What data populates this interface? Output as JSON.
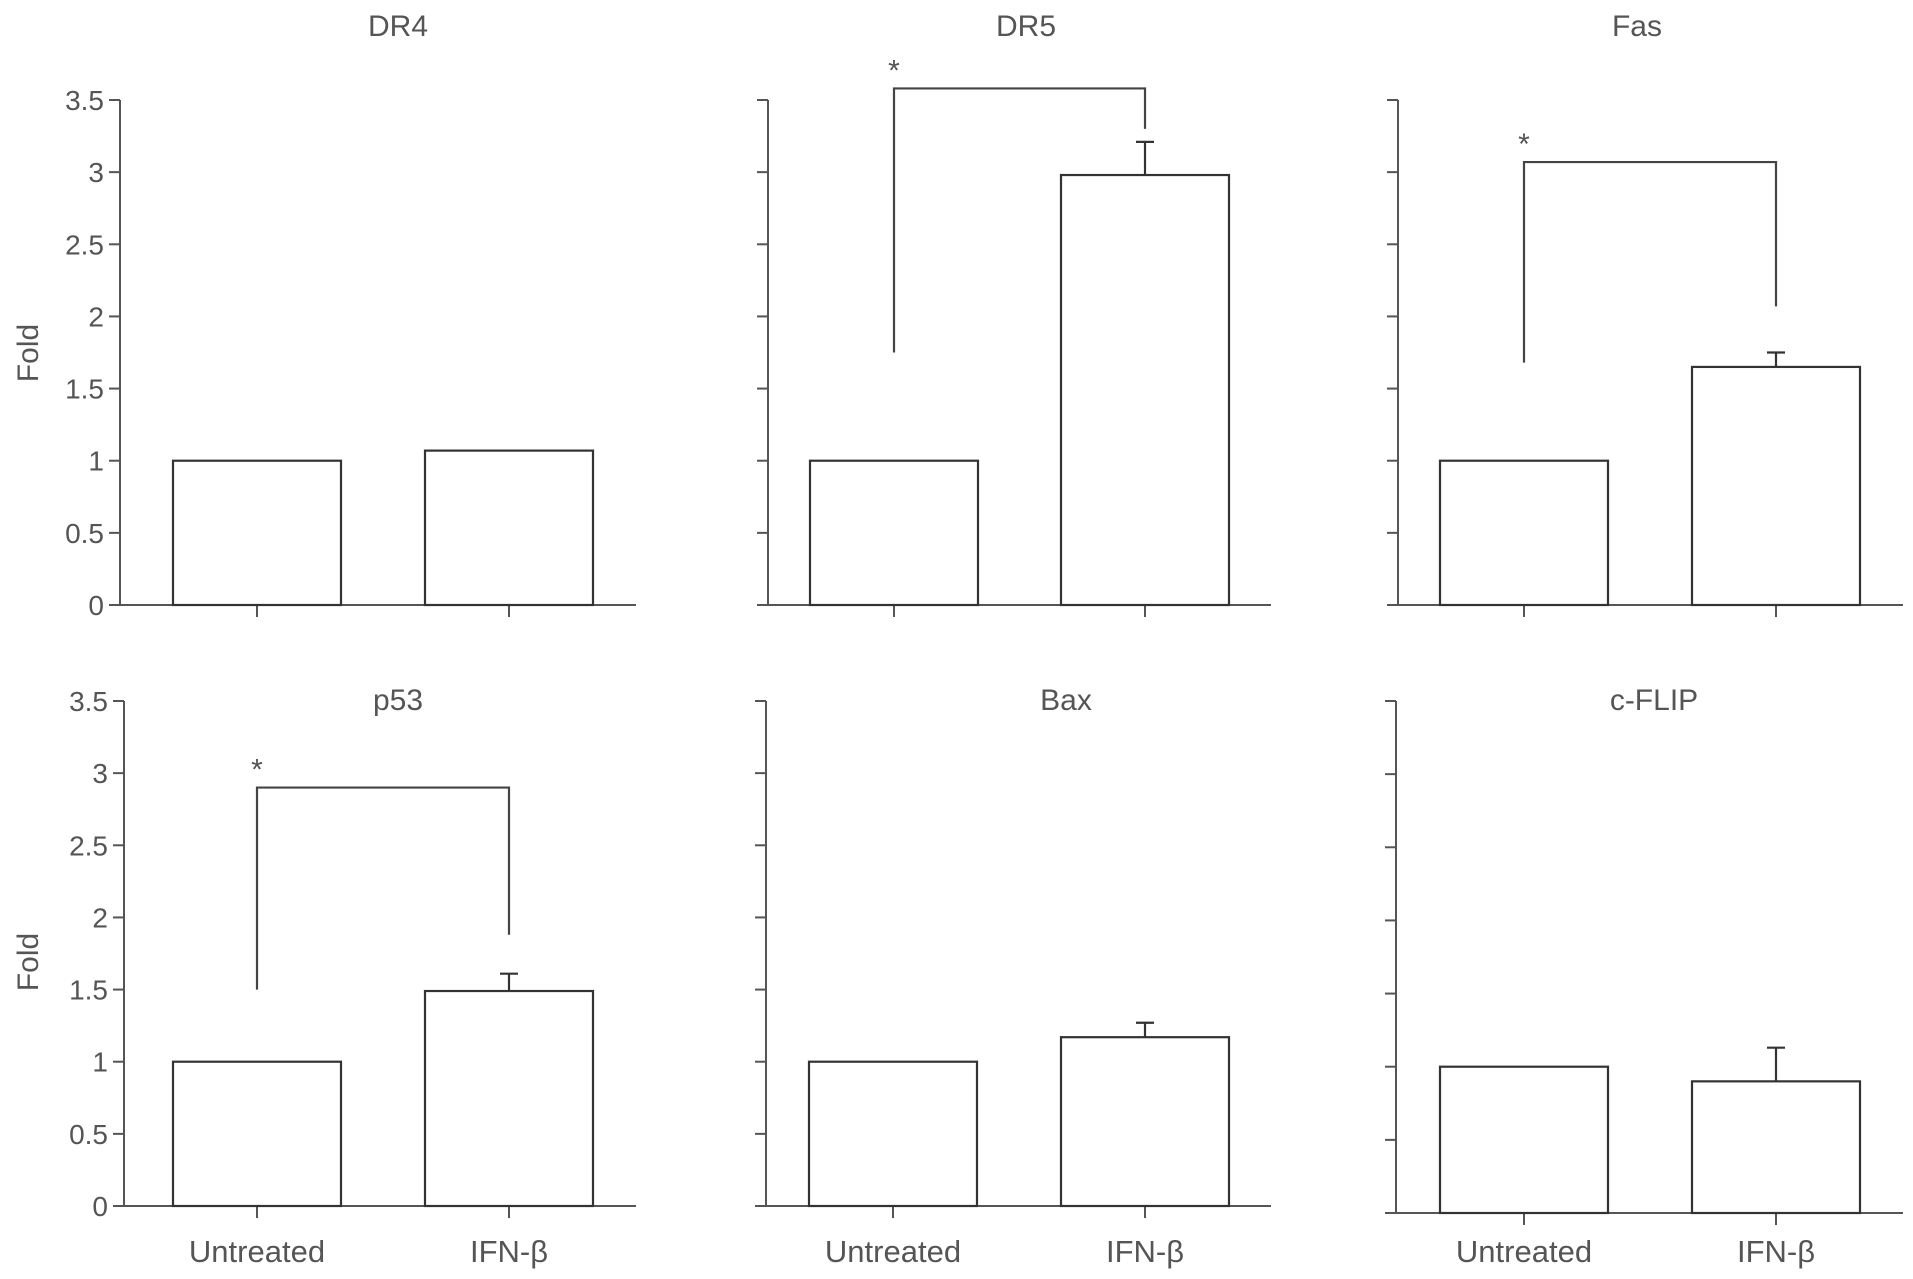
{
  "chart_data": [
    {
      "type": "bar",
      "title": "DR4",
      "ylabel": "Fold",
      "ylim": [
        0,
        3.5
      ],
      "yticks": [
        "0",
        "0.5",
        "1",
        "1.5",
        "2",
        "2.5",
        "3",
        "3.5"
      ],
      "categories": [
        "Untreated",
        "IFN-β"
      ],
      "values": [
        1.0,
        1.07
      ],
      "errors": [
        0,
        0
      ],
      "significance": null
    },
    {
      "type": "bar",
      "title": "DR5",
      "ylabel": "",
      "ylim": [
        0,
        3.5
      ],
      "yticks": [],
      "categories": [
        "Untreated",
        "IFN-β"
      ],
      "values": [
        1.0,
        2.98
      ],
      "errors": [
        0,
        0.23
      ],
      "significance": {
        "label": "*",
        "bracket_y": 3.58,
        "left_end": 1.75,
        "right_end": 3.3
      }
    },
    {
      "type": "bar",
      "title": "Fas",
      "ylabel": "",
      "ylim": [
        0,
        3.5
      ],
      "yticks": [],
      "categories": [
        "Untreated",
        "IFN-β"
      ],
      "values": [
        1.0,
        1.65
      ],
      "errors": [
        0,
        0.1
      ],
      "significance": {
        "label": "*",
        "bracket_y": 3.07,
        "left_end": 1.68,
        "right_end": 2.07
      }
    },
    {
      "type": "bar",
      "title": "p53",
      "ylabel": "Fold",
      "ylim": [
        0,
        3.5
      ],
      "yticks": [
        "0",
        "0.5",
        "1",
        "1.5",
        "2",
        "2.5",
        "3",
        "3.5"
      ],
      "categories": [
        "Untreated",
        "IFN-β"
      ],
      "values": [
        1.0,
        1.49
      ],
      "errors": [
        0,
        0.12
      ],
      "significance": {
        "label": "*",
        "bracket_y": 2.9,
        "left_end": 1.5,
        "right_end": 1.88
      }
    },
    {
      "type": "bar",
      "title": "Bax",
      "ylabel": "",
      "ylim": [
        0,
        3.5
      ],
      "yticks": [],
      "categories": [
        "Untreated",
        "IFN-β"
      ],
      "values": [
        1.0,
        1.17
      ],
      "errors": [
        0,
        0.1
      ],
      "significance": null
    },
    {
      "type": "bar",
      "title": "c-FLIP",
      "ylabel": "",
      "ylim": [
        0,
        3.5
      ],
      "yticks": [],
      "categories": [
        "Untreated",
        "IFN-β"
      ],
      "values": [
        1.0,
        0.9
      ],
      "errors": [
        0,
        0.23
      ],
      "significance": null
    }
  ]
}
